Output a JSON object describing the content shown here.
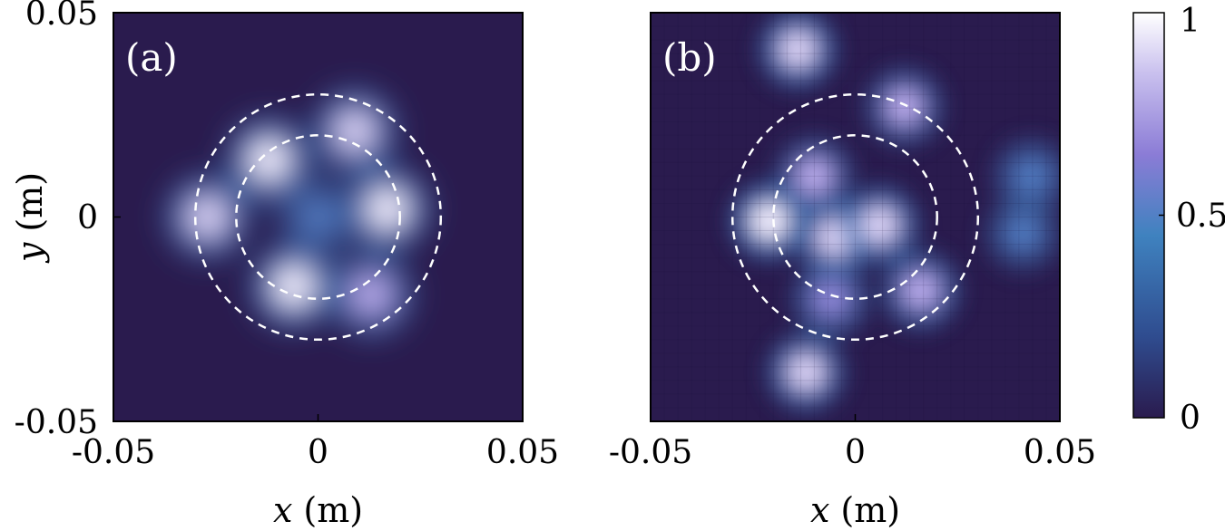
{
  "chart_data": [
    {
      "type": "heatmap",
      "panel_label": "(a)",
      "xlabel_var": "x",
      "xlabel_unit": "(m)",
      "ylabel_var": "y",
      "ylabel_unit": "(m)",
      "xlim": [
        -0.05,
        0.05
      ],
      "ylim": [
        -0.05,
        0.05
      ],
      "x_ticks": [
        "-0.05",
        "0",
        "0.05"
      ],
      "y_ticks": [
        "-0.05",
        "0",
        "0.05"
      ],
      "grid": false,
      "reference_circles_radius_m": [
        0.02,
        0.03
      ],
      "intensity_peaks": [
        {
          "x": -0.027,
          "y": 0.0,
          "value": 0.85
        },
        {
          "x": -0.012,
          "y": 0.014,
          "value": 0.95
        },
        {
          "x": 0.009,
          "y": 0.021,
          "value": 0.85
        },
        {
          "x": 0.017,
          "y": 0.002,
          "value": 0.95
        },
        {
          "x": 0.013,
          "y": -0.019,
          "value": 0.75
        },
        {
          "x": -0.006,
          "y": -0.017,
          "value": 1.0
        },
        {
          "x": 0.0,
          "y": 0.0,
          "value": 0.35
        }
      ]
    },
    {
      "type": "heatmap",
      "panel_label": "(b)",
      "xlabel_var": "x",
      "xlabel_unit": "(m)",
      "xlim": [
        -0.05,
        0.05
      ],
      "ylim": [
        -0.05,
        0.05
      ],
      "x_ticks": [
        "-0.05",
        "0",
        "0.05"
      ],
      "grid": false,
      "pixelated": true,
      "reference_circles_radius_m": [
        0.02,
        0.03
      ],
      "intensity_peaks": [
        {
          "x": -0.014,
          "y": 0.041,
          "value": 0.85
        },
        {
          "x": -0.01,
          "y": 0.01,
          "value": 0.6
        },
        {
          "x": 0.012,
          "y": 0.027,
          "value": 0.6
        },
        {
          "x": -0.021,
          "y": -0.001,
          "value": 1.0
        },
        {
          "x": -0.005,
          "y": -0.005,
          "value": 0.8
        },
        {
          "x": 0.006,
          "y": -0.002,
          "value": 0.85
        },
        {
          "x": 0.016,
          "y": -0.018,
          "value": 0.7
        },
        {
          "x": -0.006,
          "y": -0.02,
          "value": 0.55
        },
        {
          "x": -0.012,
          "y": -0.038,
          "value": 0.8
        },
        {
          "x": 0.043,
          "y": 0.01,
          "value": 0.35
        },
        {
          "x": 0.041,
          "y": -0.004,
          "value": 0.3
        }
      ]
    }
  ],
  "colorbar": {
    "range": [
      0,
      1
    ],
    "tick_labels": [
      "0",
      "0.5",
      "1"
    ],
    "colors": [
      "#2a1b4e",
      "#2f4c8f",
      "#3f82bf",
      "#8b7cd6",
      "#c9c0ee",
      "#ffffff"
    ]
  }
}
